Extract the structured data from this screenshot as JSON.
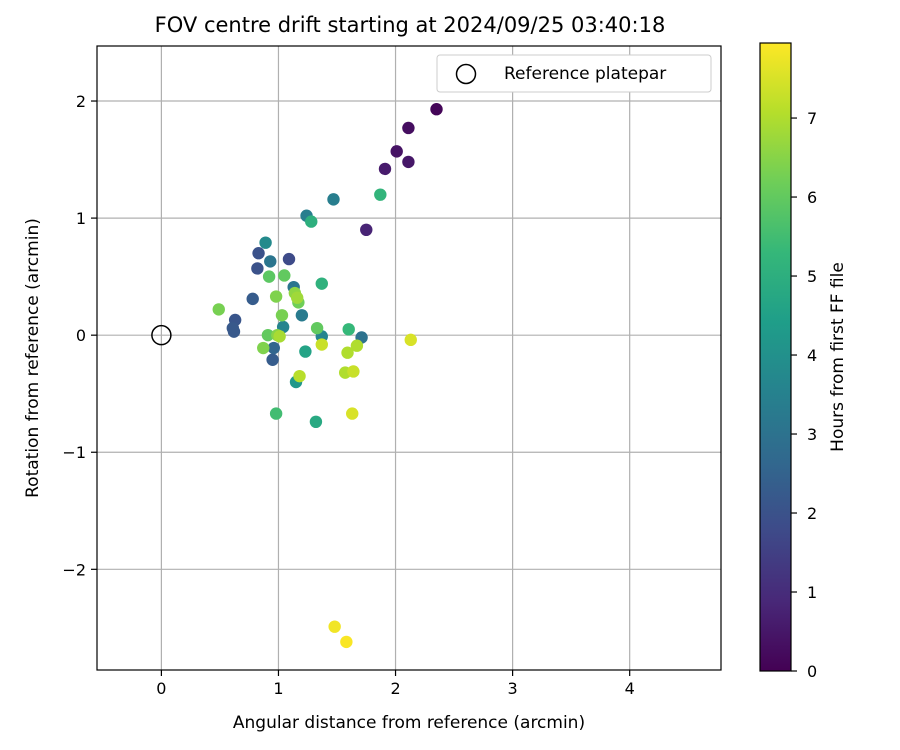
{
  "chart_data": {
    "type": "scatter",
    "title": "FOV centre drift starting at 2024/09/25 03:40:18",
    "xlabel": "Angular distance from reference (arcmin)",
    "ylabel": "Rotation from reference (arcmin)",
    "xlim": [
      -0.55,
      4.78
    ],
    "ylim": [
      -2.86,
      2.47
    ],
    "xticks": [
      0,
      1,
      2,
      3,
      4
    ],
    "yticks": [
      -2,
      -1,
      0,
      1,
      2
    ],
    "xtick_labels": [
      "0",
      "1",
      "2",
      "3",
      "4"
    ],
    "ytick_labels": [
      "−2",
      "−1",
      "0",
      "1",
      "2"
    ],
    "grid": true,
    "legend": {
      "position": "top-right",
      "entries": [
        "Reference platepar"
      ]
    },
    "reference_point": {
      "name": "Reference platepar",
      "x": 0,
      "y": 0
    },
    "colorbar": {
      "label": "Hours from first FF file",
      "range": [
        0,
        7.95
      ],
      "ticks": [
        0,
        1,
        2,
        3,
        4,
        5,
        6,
        7
      ],
      "colormap": "viridis"
    },
    "series": [
      {
        "points": [
          {
            "x": 2.35,
            "y": 1.93,
            "c": 0.1
          },
          {
            "x": 2.11,
            "y": 1.77,
            "c": 0.3
          },
          {
            "x": 2.01,
            "y": 1.57,
            "c": 0.4
          },
          {
            "x": 2.11,
            "y": 1.48,
            "c": 0.5
          },
          {
            "x": 1.91,
            "y": 1.42,
            "c": 0.6
          },
          {
            "x": 1.75,
            "y": 0.9,
            "c": 0.8
          },
          {
            "x": 1.09,
            "y": 0.65,
            "c": 1.8
          },
          {
            "x": 0.83,
            "y": 0.7,
            "c": 2.0
          },
          {
            "x": 0.82,
            "y": 0.57,
            "c": 2.0
          },
          {
            "x": 0.63,
            "y": 0.13,
            "c": 2.1
          },
          {
            "x": 0.61,
            "y": 0.06,
            "c": 2.2
          },
          {
            "x": 0.62,
            "y": 0.03,
            "c": 2.2
          },
          {
            "x": 0.78,
            "y": 0.31,
            "c": 2.3
          },
          {
            "x": 0.95,
            "y": -0.21,
            "c": 2.3
          },
          {
            "x": 0.96,
            "y": -0.11,
            "c": 2.6
          },
          {
            "x": 1.71,
            "y": -0.02,
            "c": 3.0
          },
          {
            "x": 0.93,
            "y": 0.63,
            "c": 3.1
          },
          {
            "x": 1.13,
            "y": 0.41,
            "c": 3.1
          },
          {
            "x": 1.2,
            "y": 0.17,
            "c": 3.3
          },
          {
            "x": 1.47,
            "y": 1.16,
            "c": 3.4
          },
          {
            "x": 1.24,
            "y": 1.02,
            "c": 3.4
          },
          {
            "x": 1.04,
            "y": 0.07,
            "c": 3.6
          },
          {
            "x": 1.37,
            "y": -0.01,
            "c": 3.6
          },
          {
            "x": 0.89,
            "y": 0.79,
            "c": 3.8
          },
          {
            "x": 1.15,
            "y": -0.4,
            "c": 4.2
          },
          {
            "x": 1.23,
            "y": -0.14,
            "c": 4.6
          },
          {
            "x": 1.32,
            "y": -0.74,
            "c": 4.8
          },
          {
            "x": 1.28,
            "y": 0.97,
            "c": 5.0
          },
          {
            "x": 1.37,
            "y": 0.44,
            "c": 5.1
          },
          {
            "x": 1.87,
            "y": 1.2,
            "c": 5.2
          },
          {
            "x": 1.6,
            "y": 0.05,
            "c": 5.3
          },
          {
            "x": 0.98,
            "y": -0.67,
            "c": 5.5
          },
          {
            "x": 0.92,
            "y": 0.5,
            "c": 5.9
          },
          {
            "x": 0.91,
            "y": 0.0,
            "c": 6.0
          },
          {
            "x": 1.33,
            "y": 0.06,
            "c": 6.0
          },
          {
            "x": 1.05,
            "y": 0.51,
            "c": 6.0
          },
          {
            "x": 1.17,
            "y": 0.28,
            "c": 6.2
          },
          {
            "x": 0.49,
            "y": 0.22,
            "c": 6.3
          },
          {
            "x": 1.03,
            "y": 0.17,
            "c": 6.3
          },
          {
            "x": 0.87,
            "y": -0.11,
            "c": 6.4
          },
          {
            "x": 0.98,
            "y": 0.33,
            "c": 6.4
          },
          {
            "x": 0.99,
            "y": 0.0,
            "c": 6.5
          },
          {
            "x": 1.14,
            "y": 0.36,
            "c": 6.6
          },
          {
            "x": 1.16,
            "y": 0.32,
            "c": 6.8
          },
          {
            "x": 1.01,
            "y": -0.01,
            "c": 6.9
          },
          {
            "x": 1.67,
            "y": -0.09,
            "c": 7.0
          },
          {
            "x": 1.57,
            "y": -0.32,
            "c": 7.0
          },
          {
            "x": 1.59,
            "y": -0.15,
            "c": 7.0
          },
          {
            "x": 1.18,
            "y": -0.35,
            "c": 7.1
          },
          {
            "x": 1.37,
            "y": -0.08,
            "c": 7.3
          },
          {
            "x": 1.64,
            "y": -0.31,
            "c": 7.3
          },
          {
            "x": 1.63,
            "y": -0.67,
            "c": 7.5
          },
          {
            "x": 2.13,
            "y": -0.04,
            "c": 7.5
          },
          {
            "x": 1.48,
            "y": -2.49,
            "c": 7.8
          },
          {
            "x": 1.58,
            "y": -2.62,
            "c": 7.9
          }
        ]
      }
    ]
  }
}
